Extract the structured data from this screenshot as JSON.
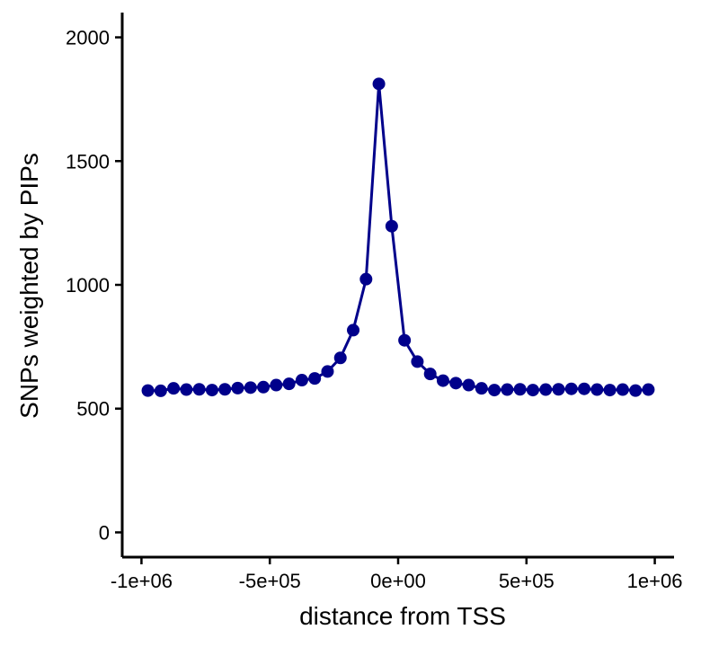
{
  "chart_data": {
    "type": "line",
    "title": "",
    "xlabel": "distance from TSS",
    "ylabel": "SNPs weighted by PIPs",
    "xlim": [
      -1075000,
      1075000
    ],
    "ylim": [
      -100,
      2100
    ],
    "xticks": [
      -1000000,
      -500000,
      0,
      500000,
      1000000
    ],
    "xtick_labels": [
      "-1e+06",
      "-5e+05",
      "0e+00",
      "5e+05",
      "1e+06"
    ],
    "yticks": [
      0,
      500,
      1000,
      1500,
      2000
    ],
    "ytick_labels": [
      "0",
      "500",
      "1000",
      "1500",
      "2000"
    ],
    "grid": false,
    "series": [
      {
        "name": "SNPs weighted by PIPs",
        "color": "#00008B",
        "x": [
          -975000,
          -925000,
          -875000,
          -825000,
          -775000,
          -725000,
          -675000,
          -625000,
          -575000,
          -525000,
          -475000,
          -425000,
          -375000,
          -325000,
          -275000,
          -225000,
          -175000,
          -125000,
          -75000,
          -25000,
          25000,
          75000,
          125000,
          175000,
          225000,
          275000,
          325000,
          375000,
          425000,
          475000,
          525000,
          575000,
          625000,
          675000,
          725000,
          775000,
          825000,
          875000,
          925000,
          975000
        ],
        "y": [
          573,
          572,
          582,
          577,
          578,
          575,
          578,
          583,
          585,
          587,
          595,
          600,
          615,
          622,
          650,
          705,
          817,
          1023,
          1812,
          1237,
          776,
          690,
          640,
          613,
          603,
          595,
          582,
          575,
          577,
          578,
          575,
          577,
          578,
          580,
          580,
          577,
          575,
          577,
          573,
          577
        ]
      }
    ]
  }
}
